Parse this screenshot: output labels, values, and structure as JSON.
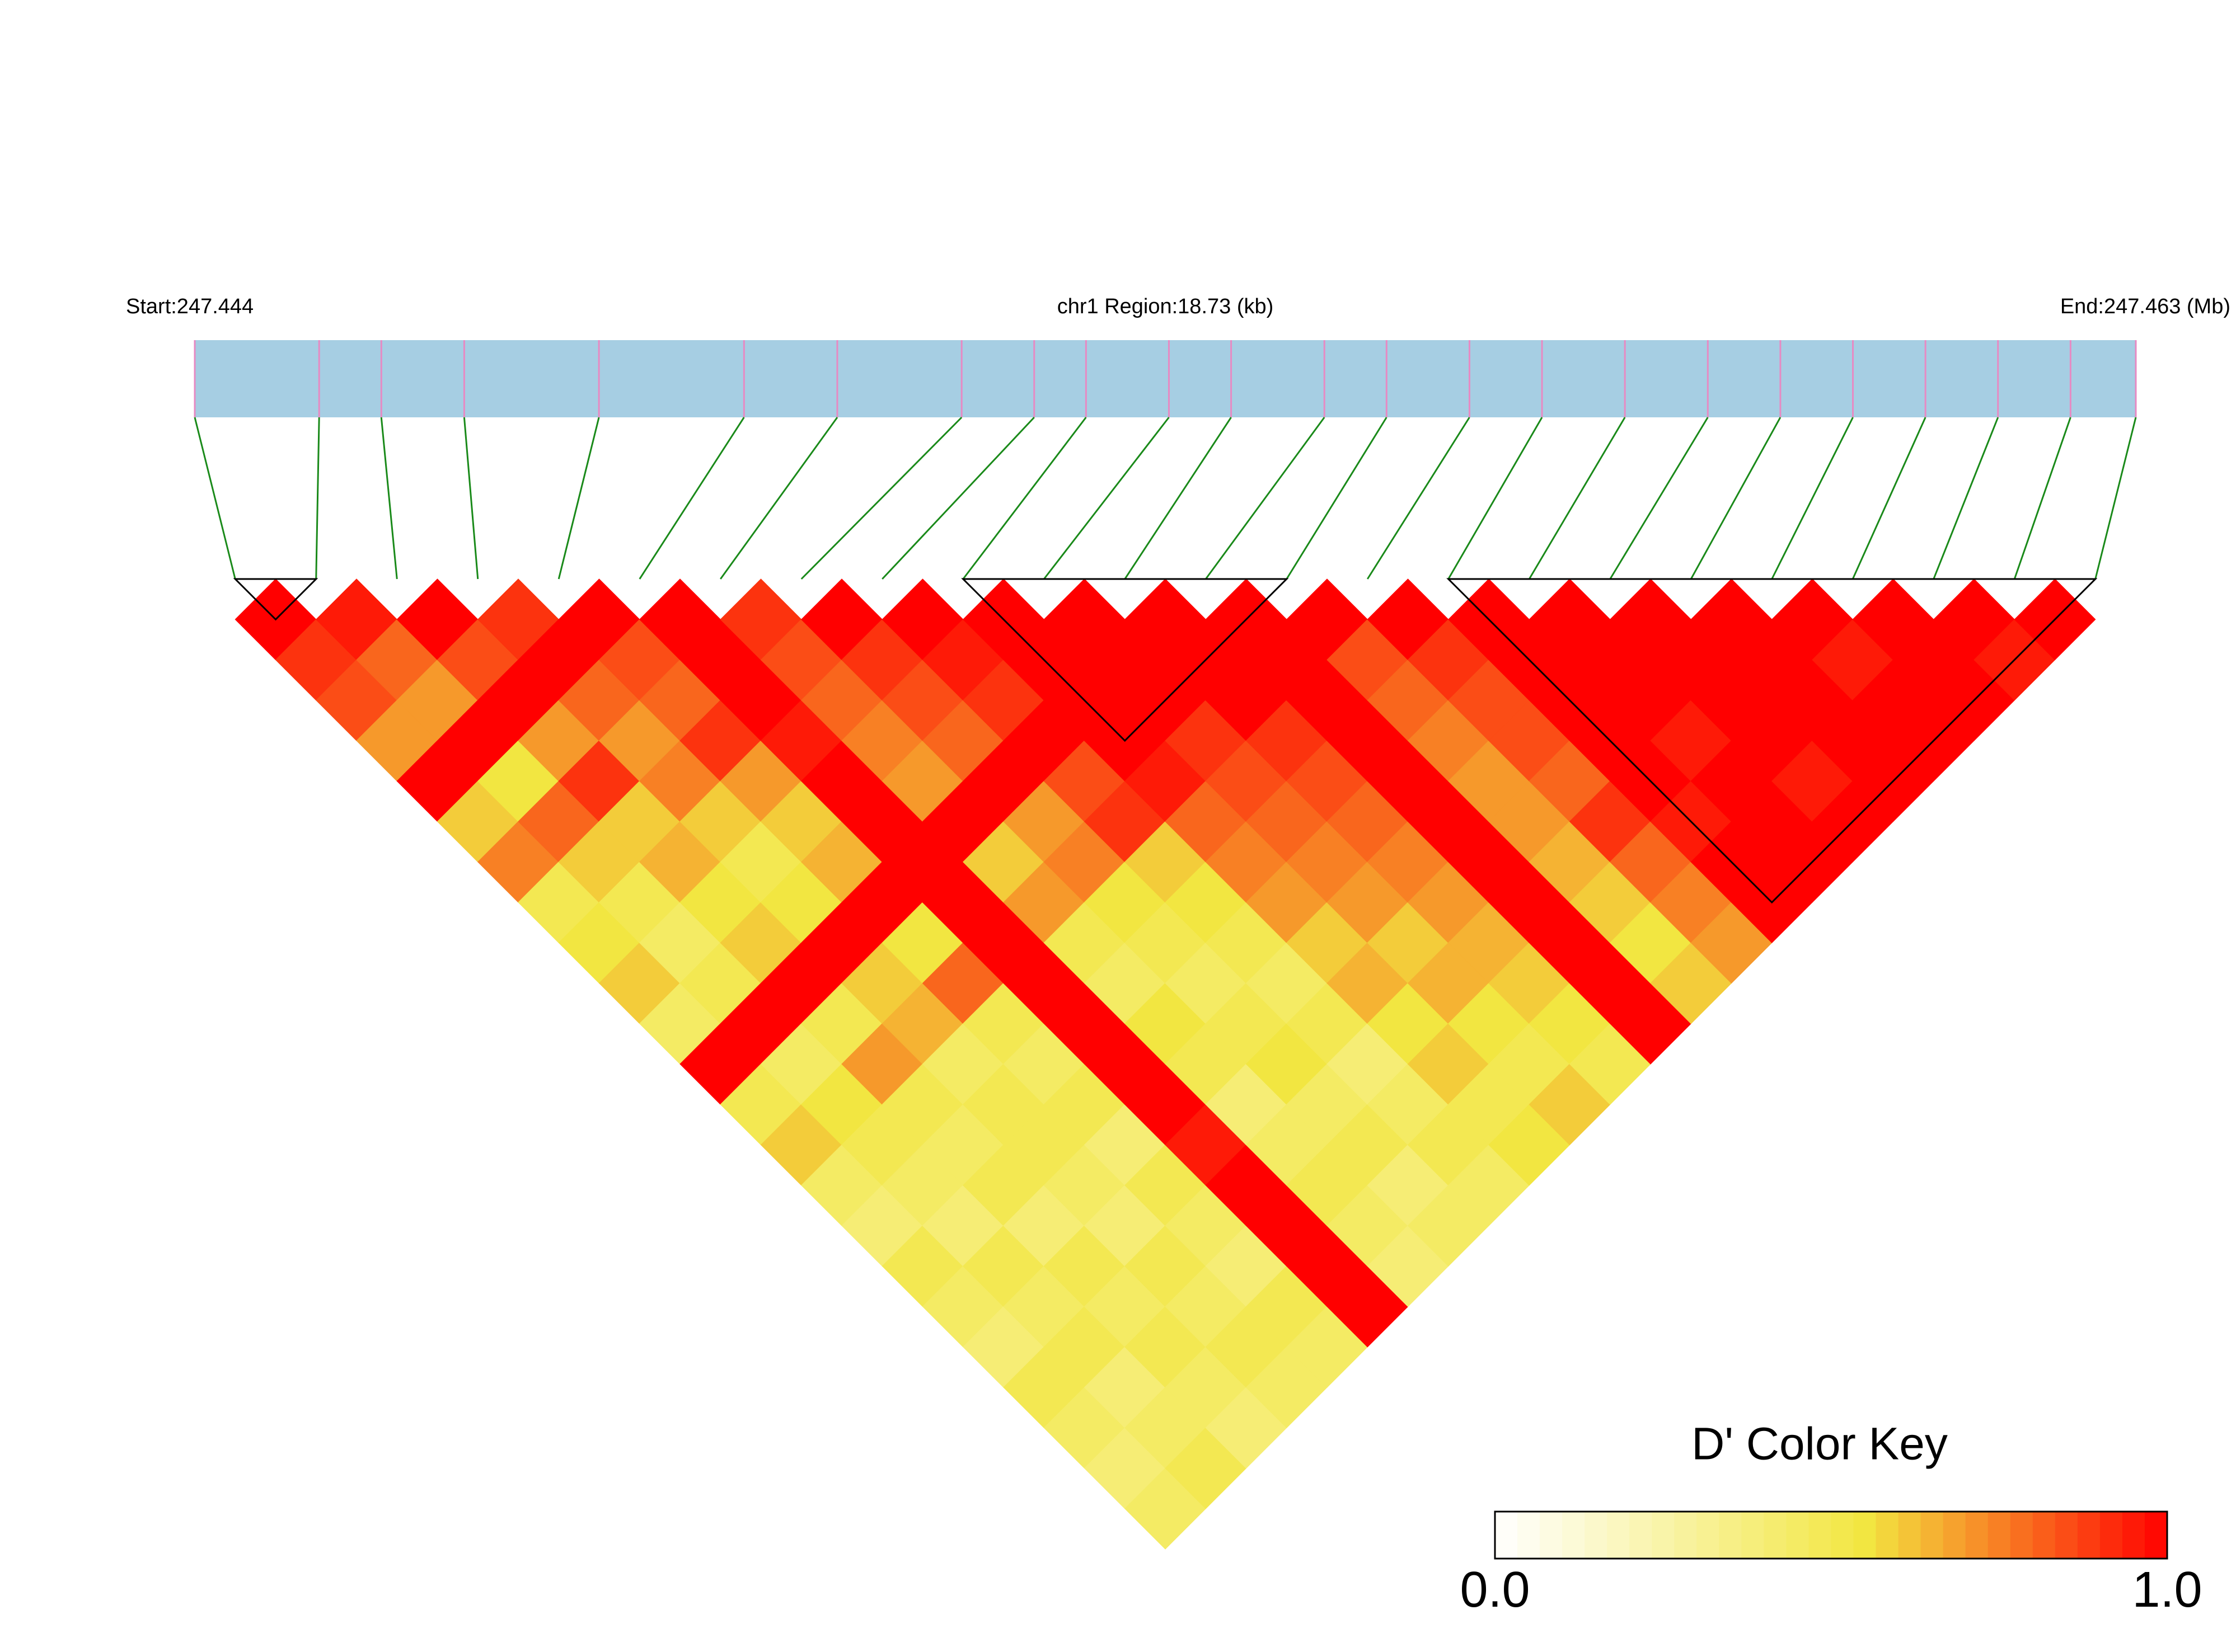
{
  "chart_data": {
    "type": "ld_heatmap",
    "start_label": "Start:247.444",
    "region_label": "chr1 Region:18.73 (kb)",
    "end_label": "End:247.463 (Mb)",
    "key_title": "D' Color Key",
    "xlim": [
      0,
      18.73
    ],
    "positions": [
      0,
      1.2,
      1.8,
      2.6,
      3.9,
      5.3,
      6.2,
      7.4,
      8.1,
      8.6,
      9.4,
      10.0,
      10.9,
      11.5,
      12.3,
      13.0,
      13.8,
      14.6,
      15.3,
      16.0,
      16.7,
      17.4,
      18.1,
      18.73
    ],
    "matrix": [
      [
        1,
        0.9,
        0.85,
        0.7,
        1,
        0.6,
        0.75,
        0.5,
        0.55,
        0.6,
        0.45,
        1,
        0.5,
        0.6,
        0.45,
        0.4,
        0.5,
        0.45,
        0.4,
        0.5,
        0.45,
        0.4,
        0.45
      ],
      [
        0.95,
        0.8,
        0.7,
        1,
        0.55,
        0.8,
        0.6,
        0.5,
        0.45,
        0.5,
        1,
        0.45,
        0.55,
        0.5,
        0.45,
        0.4,
        0.5,
        0.45,
        0.5,
        0.4,
        0.45,
        0.5
      ],
      [
        1,
        0.85,
        1,
        0.7,
        0.9,
        0.6,
        0.65,
        0.55,
        0.6,
        1,
        0.5,
        0.7,
        0.5,
        0.45,
        0.5,
        0.4,
        0.5,
        0.45,
        0.5,
        0.45,
        0.4
      ],
      [
        0.9,
        1,
        0.8,
        0.7,
        0.75,
        0.6,
        0.5,
        0.55,
        1,
        0.6,
        0.65,
        0.45,
        0.5,
        0.5,
        0.45,
        0.4,
        0.5,
        0.45,
        0.5,
        0.45
      ],
      [
        1,
        0.85,
        0.8,
        0.9,
        0.7,
        0.6,
        0.65,
        1,
        0.55,
        0.8,
        0.5,
        0.45,
        0.5,
        0.4,
        0.5,
        0.45,
        0.4,
        0.5,
        0.45
      ],
      [
        1,
        1,
        1,
        0.95,
        1,
        1,
        1,
        1,
        1,
        1,
        1,
        1,
        1,
        0.95,
        1,
        1,
        1,
        1
      ],
      [
        0.9,
        0.85,
        0.8,
        0.75,
        0.7,
        1,
        0.6,
        0.7,
        0.5,
        0.45,
        0.55,
        0.5,
        0.4,
        0.45,
        0.5,
        0.45,
        0.4
      ],
      [
        1,
        0.9,
        0.85,
        0.8,
        1,
        0.7,
        0.75,
        0.55,
        0.5,
        0.45,
        0.5,
        0.55,
        0.45,
        0.5,
        0.4,
        0.45
      ],
      [
        1,
        0.95,
        0.9,
        1,
        0.85,
        0.9,
        0.6,
        0.55,
        0.5,
        0.45,
        0.5,
        0.4,
        0.45,
        0.5,
        0.45
      ],
      [
        1,
        1,
        1,
        1,
        0.95,
        0.8,
        0.75,
        0.7,
        0.6,
        0.65,
        0.55,
        0.6,
        0.5,
        0.55
      ],
      [
        1,
        1,
        1,
        0.9,
        0.85,
        0.8,
        0.75,
        0.7,
        0.6,
        0.65,
        0.55,
        0.5,
        0.6
      ],
      [
        1,
        1,
        1,
        0.9,
        0.85,
        0.8,
        0.75,
        0.7,
        0.65,
        0.6,
        0.55,
        0.5
      ],
      [
        1,
        1,
        1,
        1,
        1,
        1,
        1,
        1,
        1,
        1,
        1
      ],
      [
        1,
        0.85,
        0.8,
        0.75,
        0.7,
        0.7,
        0.65,
        0.6,
        0.55,
        0.6
      ],
      [
        1,
        0.9,
        0.85,
        0.85,
        0.8,
        0.9,
        0.8,
        0.75,
        0.7
      ],
      [
        1,
        1,
        1,
        1,
        1,
        0.95,
        1,
        1
      ],
      [
        1,
        1,
        1,
        0.95,
        1,
        1,
        1
      ],
      [
        1,
        1,
        1,
        1,
        0.95,
        1
      ],
      [
        1,
        1,
        1,
        1,
        1
      ],
      [
        1,
        0.95,
        1,
        1
      ],
      [
        1,
        1,
        1
      ],
      [
        1,
        0.95
      ],
      [
        1
      ]
    ],
    "blocks": [
      [
        0,
        1
      ],
      [
        9,
        13
      ],
      [
        15,
        23
      ]
    ],
    "bar_color": "#a6cee3",
    "snp_color": "#e78ac3",
    "link_color": "#1a8a1a",
    "key_colors": [
      "#ffffff",
      "#f2e641",
      "#ff0000"
    ],
    "key_stops": [
      0,
      0.55,
      1
    ],
    "key_lim": [
      0,
      1
    ],
    "key_ticks": [
      {
        "value": 0,
        "label": "0.0"
      },
      {
        "value": 1,
        "label": "1.0"
      }
    ]
  }
}
